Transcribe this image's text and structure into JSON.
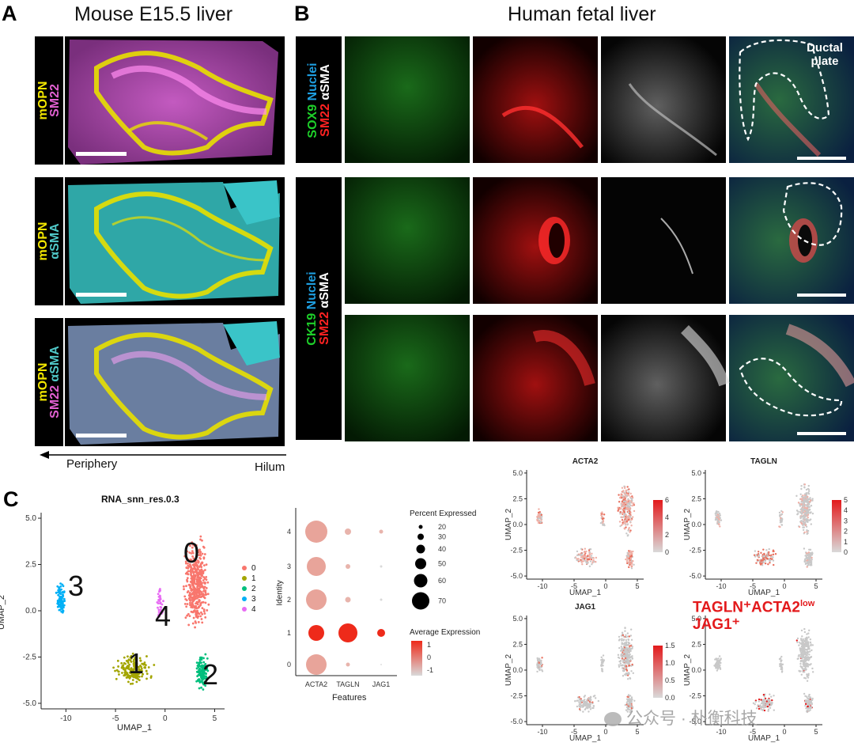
{
  "panel_a": {
    "letter": "A",
    "title": "Mouse E15.5 liver",
    "rows": [
      {
        "stain_parts": [
          {
            "text": "mOPN",
            "color": "#f2e600"
          }
        ],
        "stain_parts2": [
          {
            "text": "SM22",
            "color": "#e060d0"
          }
        ]
      },
      {
        "stain_parts": [
          {
            "text": "mOPN",
            "color": "#f2e600"
          }
        ],
        "stain_parts2": [
          {
            "text": "αSMA",
            "color": "#50c8c8"
          }
        ]
      },
      {
        "stain_parts": [
          {
            "text": "mOPN",
            "color": "#f2e600"
          }
        ],
        "stain_parts2": [
          {
            "text": "SM22 ",
            "color": "#e060d0"
          },
          {
            "text": "αSMA",
            "color": "#50c8c8"
          }
        ]
      }
    ],
    "axis_left": "Periphery",
    "axis_right": "Hilum"
  },
  "panel_b": {
    "letter": "B",
    "title": "Human fetal liver",
    "row1_label_line1": [
      {
        "text": "SOX9 ",
        "color": "#1ed02a"
      },
      {
        "text": "Nuclei",
        "color": "#1e9ee0"
      }
    ],
    "row1_label_line2": [
      {
        "text": "SM22 ",
        "color": "#ff2222"
      },
      {
        "text": "αSMA",
        "color": "#ffffff"
      }
    ],
    "row23_label_line1": [
      {
        "text": "CK19 ",
        "color": "#1ed02a"
      },
      {
        "text": "Nuclei",
        "color": "#1e9ee0"
      }
    ],
    "row23_label_line2": [
      {
        "text": "SM22 ",
        "color": "#ff2222"
      },
      {
        "text": "αSMA",
        "color": "#ffffff"
      }
    ],
    "annotation": "Ductal\nplate"
  },
  "panel_c": {
    "letter": "C",
    "umap_main": {
      "title": "RNA_snn_res.0.3",
      "xlabel": "UMAP_1",
      "ylabel": "UMAP_2",
      "xticks": [
        "-10",
        "-5",
        "0",
        "5"
      ],
      "yticks": [
        "5.0",
        "2.5",
        "0.0",
        "-2.5",
        "-5.0"
      ],
      "legend": [
        {
          "label": "0",
          "color": "#f8766d"
        },
        {
          "label": "1",
          "color": "#a3a500"
        },
        {
          "label": "2",
          "color": "#00bf7d"
        },
        {
          "label": "3",
          "color": "#00b0f6"
        },
        {
          "label": "4",
          "color": "#e76bf3"
        }
      ],
      "cluster_labels": [
        "0",
        "1",
        "2",
        "3",
        "4"
      ]
    },
    "dotplot": {
      "xlabel": "Features",
      "ylabel": "Identity",
      "features": [
        "ACTA2",
        "TAGLN",
        "JAG1"
      ],
      "identities": [
        "4",
        "3",
        "2",
        "1",
        "0"
      ],
      "size_legend_title": "Percent Expressed",
      "size_legend": [
        "20",
        "30",
        "40",
        "50",
        "60",
        "70"
      ],
      "color_legend_title": "Average Expression",
      "color_ticks": [
        "1",
        "0",
        "-1"
      ]
    },
    "feature_plots": [
      {
        "title": "ACTA2",
        "xlabel": "UMAP_1",
        "ylabel": "UMAP_2",
        "scale": [
          "6",
          "4",
          "2",
          "0"
        ]
      },
      {
        "title": "TAGLN",
        "xlabel": "UMAP_1",
        "ylabel": "UMAP_2",
        "scale": [
          "5",
          "4",
          "3",
          "2",
          "1",
          "0"
        ]
      },
      {
        "title": "JAG1",
        "xlabel": "UMAP_1",
        "ylabel": "UMAP_2",
        "scale": [
          "1.5",
          "1.0",
          "0.5",
          "0.0"
        ]
      },
      {
        "title": "",
        "xlabel": "UMAP_1",
        "ylabel": "UMAP_2",
        "scale": []
      }
    ],
    "fp_xticks": [
      "-10",
      "-5",
      "0",
      "5"
    ],
    "fp_yticks": [
      "5.0",
      "2.5",
      "0.0",
      "-2.5",
      "-5.0"
    ],
    "highlight_line1": "TAGLN⁺ACTA2",
    "highlight_low": "low",
    "highlight_line2": "JAG1⁺"
  },
  "watermark": "公众号 · 朴衡科技"
}
